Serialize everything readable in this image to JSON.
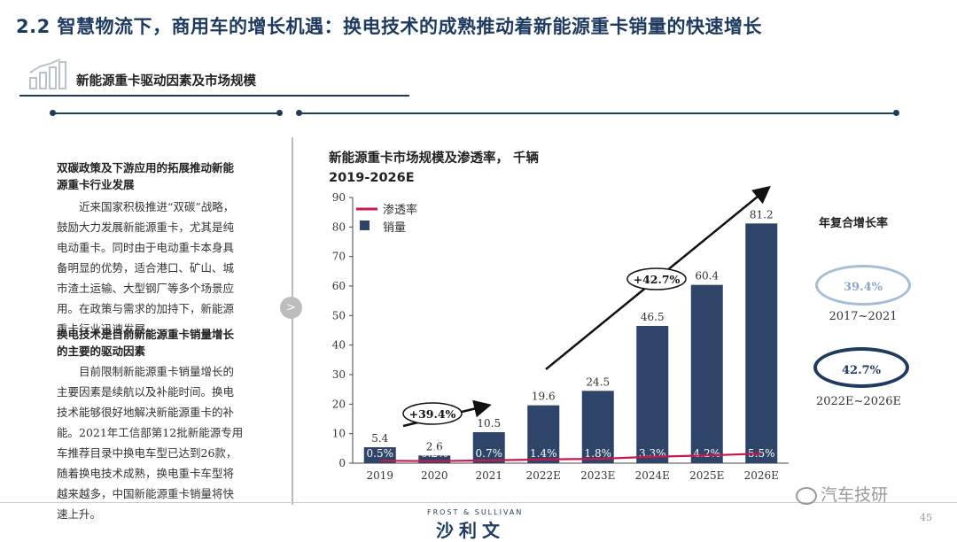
{
  "header": {
    "title": "2.2 智慧物流下，商用车的增长机遇：换电技术的成熟推动着新能源重卡销量的快速增长",
    "section_title": "新能源重卡驱动因素及市场规模"
  },
  "left_panel": {
    "heading1_line1": "双碳政策及下游应用的拓展推动新能",
    "heading1_line2": "源重卡行业发展",
    "para1": [
      "近来国家积极推进“双碳”战略，",
      "鼓励大力发展新能源重卡，尤其是纯",
      "电动重卡。同时由于电动重卡本身具",
      "备明显的优势，适合港口、矿山、城",
      "市渣土运输、大型钢厂等多个场景应",
      "用。在政策与需求的加持下，新能源",
      "重卡行业迅速发展。"
    ],
    "heading2_line1": "换电技术是目前新能源重卡销量增长",
    "heading2_line2": "的主要的驱动因素",
    "para2": [
      "目前限制新能源重卡销量增长的",
      "主要因素是续航以及补能时间。换电",
      "技术能够很好地解决新能源重卡的补",
      "能。2021年工信部第12批新能源专用",
      "车推荐目录中换电车型已达到26款，",
      "随着换电技术成熟，换电重卡车型将",
      "越来越多，中国新能源重卡销量将快",
      "速上升。"
    ],
    "arrow_glyph": ">"
  },
  "chart_data": {
    "type": "bar",
    "title_line1": "新能源重卡市场规模及渗透率，  千辆",
    "title_line2": "2019-2026E",
    "categories": [
      "2019",
      "2020",
      "2021",
      "2022E",
      "2023E",
      "2024E",
      "2025E",
      "2026E"
    ],
    "series": [
      {
        "name": "销量",
        "type": "bar",
        "values": [
          5.4,
          2.6,
          10.5,
          19.6,
          24.5,
          46.5,
          60.4,
          81.2
        ]
      },
      {
        "name": "渗透率",
        "type": "line",
        "labels": [
          "0.5%",
          "0.2%",
          "0.7%",
          "1.4%",
          "1.8%",
          "3.3%",
          "4.2%",
          "5.5%"
        ],
        "values": [
          0.5,
          0.2,
          0.7,
          1.4,
          1.8,
          3.3,
          4.2,
          5.5
        ]
      }
    ],
    "ylim": [
      0,
      90
    ],
    "yticks": [
      0,
      10,
      20,
      30,
      40,
      50,
      60,
      70,
      80,
      90
    ],
    "legend_position": "top-left",
    "annotations": [
      "+39.4%",
      "+42.7%"
    ],
    "colors": {
      "bar": "#2e4468",
      "line": "#c8194b"
    }
  },
  "cagr": {
    "title": "年复合增长率",
    "items": [
      {
        "value": "39.4%",
        "period": "2017~2021"
      },
      {
        "value": "42.7%",
        "period": "2022E~2026E"
      }
    ]
  },
  "footer": {
    "brand_top": "FROST & SULLIVAN",
    "brand": "沙利文",
    "watermark": "汽车技研",
    "page": "45"
  }
}
